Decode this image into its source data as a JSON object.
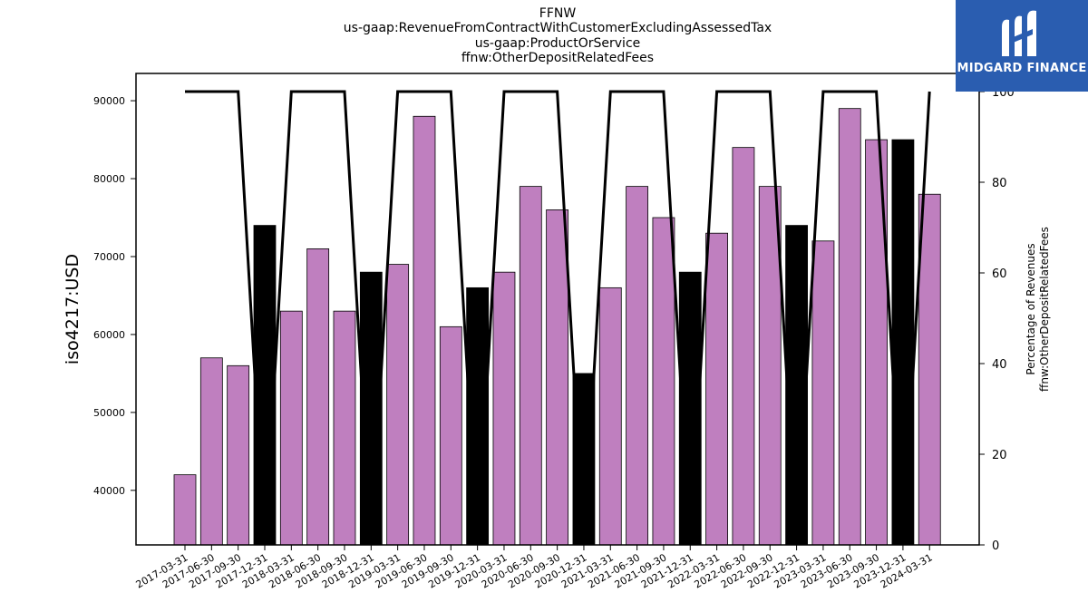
{
  "title_lines": [
    "FFNW",
    "us-gaap:RevenueFromContractWithCustomerExcludingAssessedTax",
    "us-gaap:ProductOrService",
    "ffnw:OtherDepositRelatedFees"
  ],
  "logo": {
    "text": "MIDGARD FINANCE",
    "icon": "midgard-m-logo",
    "background": "#2a5db0"
  },
  "chart_data": {
    "type": "bar",
    "categories": [
      "2017-03-31",
      "2017-06-30",
      "2017-09-30",
      "2017-12-31",
      "2018-03-31",
      "2018-06-30",
      "2018-09-30",
      "2018-12-31",
      "2019-03-31",
      "2019-06-30",
      "2019-09-30",
      "2019-12-31",
      "2020-03-31",
      "2020-06-30",
      "2020-09-30",
      "2020-12-31",
      "2021-03-31",
      "2021-06-30",
      "2021-09-30",
      "2021-12-31",
      "2022-03-31",
      "2022-06-30",
      "2022-09-30",
      "2022-12-31",
      "2023-03-31",
      "2023-06-30",
      "2023-09-30",
      "2023-12-31",
      "2024-03-31"
    ],
    "values": [
      42000,
      57000,
      56000,
      74000,
      63000,
      71000,
      63000,
      68000,
      69000,
      88000,
      61000,
      66000,
      68000,
      79000,
      76000,
      55000,
      66000,
      79000,
      75000,
      68000,
      73000,
      84000,
      79000,
      74000,
      72000,
      89000,
      85000,
      85000,
      78000
    ],
    "highlight": [
      false,
      false,
      false,
      true,
      false,
      false,
      false,
      true,
      false,
      false,
      false,
      true,
      false,
      false,
      false,
      true,
      false,
      false,
      false,
      true,
      false,
      false,
      false,
      true,
      false,
      false,
      false,
      true,
      false
    ],
    "percentage": [
      100,
      100,
      100,
      0,
      100,
      100,
      100,
      0,
      100,
      100,
      100,
      0,
      100,
      100,
      100,
      0,
      100,
      100,
      100,
      0,
      100,
      100,
      100,
      0,
      100,
      100,
      100,
      0,
      100
    ],
    "ylabel": "iso4217:USD",
    "ylim": [
      33000,
      93500
    ],
    "yticks": [
      40000,
      50000,
      60000,
      70000,
      80000,
      90000
    ],
    "y2label_lines": [
      "Percentage of Revenues",
      "ffnw:OtherDepositRelatedFees"
    ],
    "y2lim": [
      0,
      104
    ],
    "y2ticks": [
      0,
      20,
      40,
      60,
      80,
      100
    ],
    "colors": {
      "bar": "#bf7fbf",
      "highlight_bar": "#000000",
      "line": "#000000"
    },
    "grid": false
  }
}
